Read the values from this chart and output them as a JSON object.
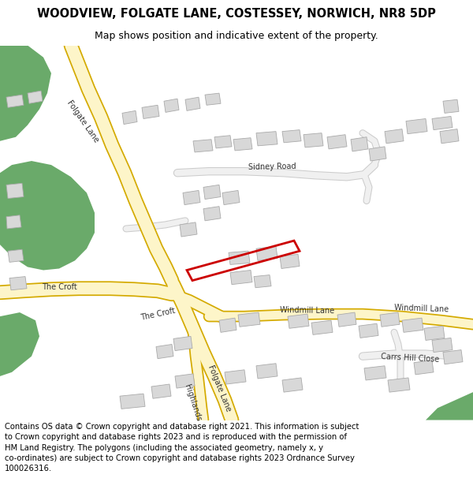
{
  "title": "WOODVIEW, FOLGATE LANE, COSTESSEY, NORWICH, NR8 5DP",
  "subtitle": "Map shows position and indicative extent of the property.",
  "footer": "Contains OS data © Crown copyright and database right 2021. This information is subject to Crown copyright and database rights 2023 and is reproduced with the permission of HM Land Registry. The polygons (including the associated geometry, namely x, y co-ordinates) are subject to Crown copyright and database rights 2023 Ordnance Survey 100026316.",
  "map_bg": "#ffffff",
  "road_fill": "#fdf5c9",
  "road_outline": "#d4aa00",
  "building_fill": "#d8d8d8",
  "building_outline": "#aaaaaa",
  "green_color": "#6aaa6a",
  "red_outline": "#cc0000",
  "title_fontsize": 10.5,
  "subtitle_fontsize": 9,
  "footer_fontsize": 7.2,
  "label_color": "#333333",
  "label_size": 7
}
